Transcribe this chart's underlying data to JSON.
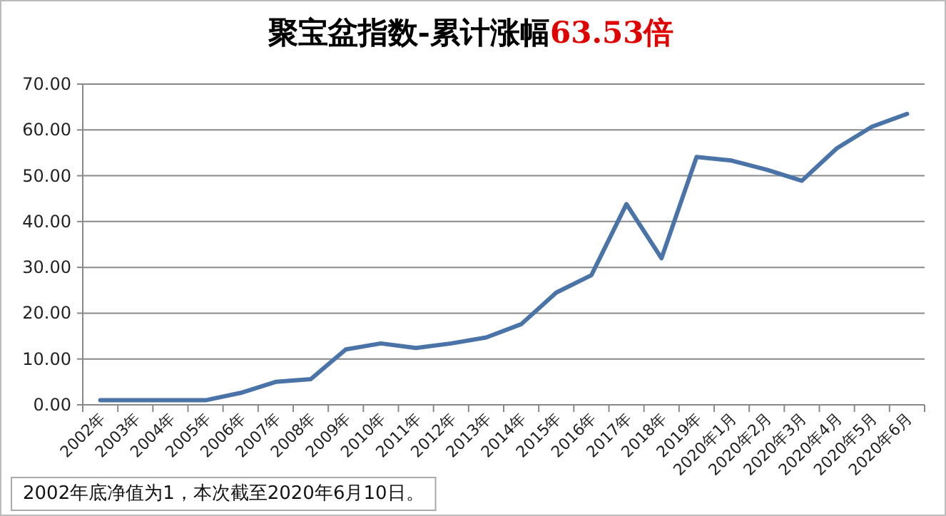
{
  "chart_data": {
    "type": "line",
    "title": "聚宝盆指数-累计涨幅",
    "subtitle": "63.53倍",
    "categories": [
      "2002年",
      "2003年",
      "2004年",
      "2005年",
      "2006年",
      "2007年",
      "2008年",
      "2009年",
      "2010年",
      "2011年",
      "2012年",
      "2013年",
      "2014年",
      "2015年",
      "2016年",
      "2017年",
      "2018年",
      "2019年",
      "2020年1月",
      "2020年2月",
      "2020年3月",
      "2020年4月",
      "2020年5月",
      "2020年6月"
    ],
    "series": [
      {
        "color": "#4a74a8",
        "values": [
          1.0,
          1.0,
          1.0,
          1.0,
          2.6,
          5.0,
          5.6,
          12.1,
          13.4,
          12.4,
          13.4,
          14.7,
          17.6,
          24.5,
          28.3,
          43.8,
          32.0,
          54.1,
          53.3,
          51.3,
          48.9,
          56.0,
          60.7,
          63.5
        ]
      }
    ],
    "ylim": [
      0,
      70
    ],
    "yticks": [
      {
        "value": 0,
        "label": "0.00"
      },
      {
        "value": 10,
        "label": "10.00"
      },
      {
        "value": 20,
        "label": "20.00"
      },
      {
        "value": 30,
        "label": "30.00"
      },
      {
        "value": 40,
        "label": "40.00"
      },
      {
        "value": 50,
        "label": "50.00"
      },
      {
        "value": 60,
        "label": "60.00"
      },
      {
        "value": 70,
        "label": "70.00"
      }
    ],
    "grid": "y",
    "marker": "none",
    "line_style": "solid",
    "annotations": [
      "2002年底净值为1，本次截至2020年6月10日。"
    ]
  }
}
